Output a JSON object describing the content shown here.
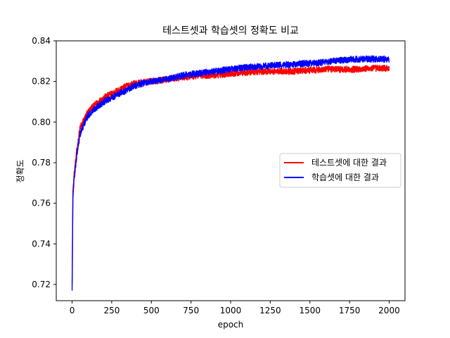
{
  "chart_data": {
    "type": "line",
    "title": "테스트셋과 학습셋의 정확도 비교",
    "xlabel": "epoch",
    "ylabel": "정확도",
    "xlim": [
      -100,
      2100
    ],
    "ylim": [
      0.712,
      0.84
    ],
    "xticks": [
      0,
      250,
      500,
      750,
      1000,
      1250,
      1500,
      1750,
      2000
    ],
    "yticks": [
      0.72,
      0.74,
      0.76,
      0.78,
      0.8,
      0.82,
      0.84
    ],
    "ytick_labels": [
      "0.72",
      "0.74",
      "0.76",
      "0.78",
      "0.80",
      "0.82",
      "0.84"
    ],
    "legend_position": "center-right",
    "grid": false,
    "series": [
      {
        "name": "테스트셋에 대한 결과",
        "color": "#ff0000",
        "x": [
          0,
          5,
          10,
          20,
          30,
          50,
          75,
          100,
          150,
          200,
          250,
          300,
          350,
          400,
          500,
          600,
          700,
          800,
          900,
          1000,
          1100,
          1200,
          1300,
          1400,
          1500,
          1600,
          1700,
          1800,
          1900,
          2000
        ],
        "y": [
          0.72,
          0.766,
          0.772,
          0.779,
          0.786,
          0.797,
          0.801,
          0.805,
          0.809,
          0.812,
          0.814,
          0.816,
          0.818,
          0.819,
          0.82,
          0.821,
          0.822,
          0.823,
          0.823,
          0.824,
          0.8245,
          0.825,
          0.825,
          0.825,
          0.8255,
          0.826,
          0.826,
          0.826,
          0.8265,
          0.8265
        ]
      },
      {
        "name": "학습셋에 대한 결과",
        "color": "#0000ff",
        "x": [
          0,
          5,
          10,
          20,
          30,
          50,
          75,
          100,
          150,
          200,
          250,
          300,
          350,
          400,
          500,
          600,
          700,
          800,
          900,
          1000,
          1100,
          1200,
          1300,
          1400,
          1500,
          1600,
          1700,
          1800,
          1900,
          2000
        ],
        "y": [
          0.717,
          0.762,
          0.769,
          0.777,
          0.784,
          0.794,
          0.799,
          0.803,
          0.807,
          0.81,
          0.812,
          0.814,
          0.816,
          0.818,
          0.82,
          0.821,
          0.823,
          0.824,
          0.825,
          0.826,
          0.827,
          0.8275,
          0.828,
          0.8285,
          0.829,
          0.8295,
          0.8305,
          0.831,
          0.831,
          0.831
        ]
      }
    ]
  }
}
